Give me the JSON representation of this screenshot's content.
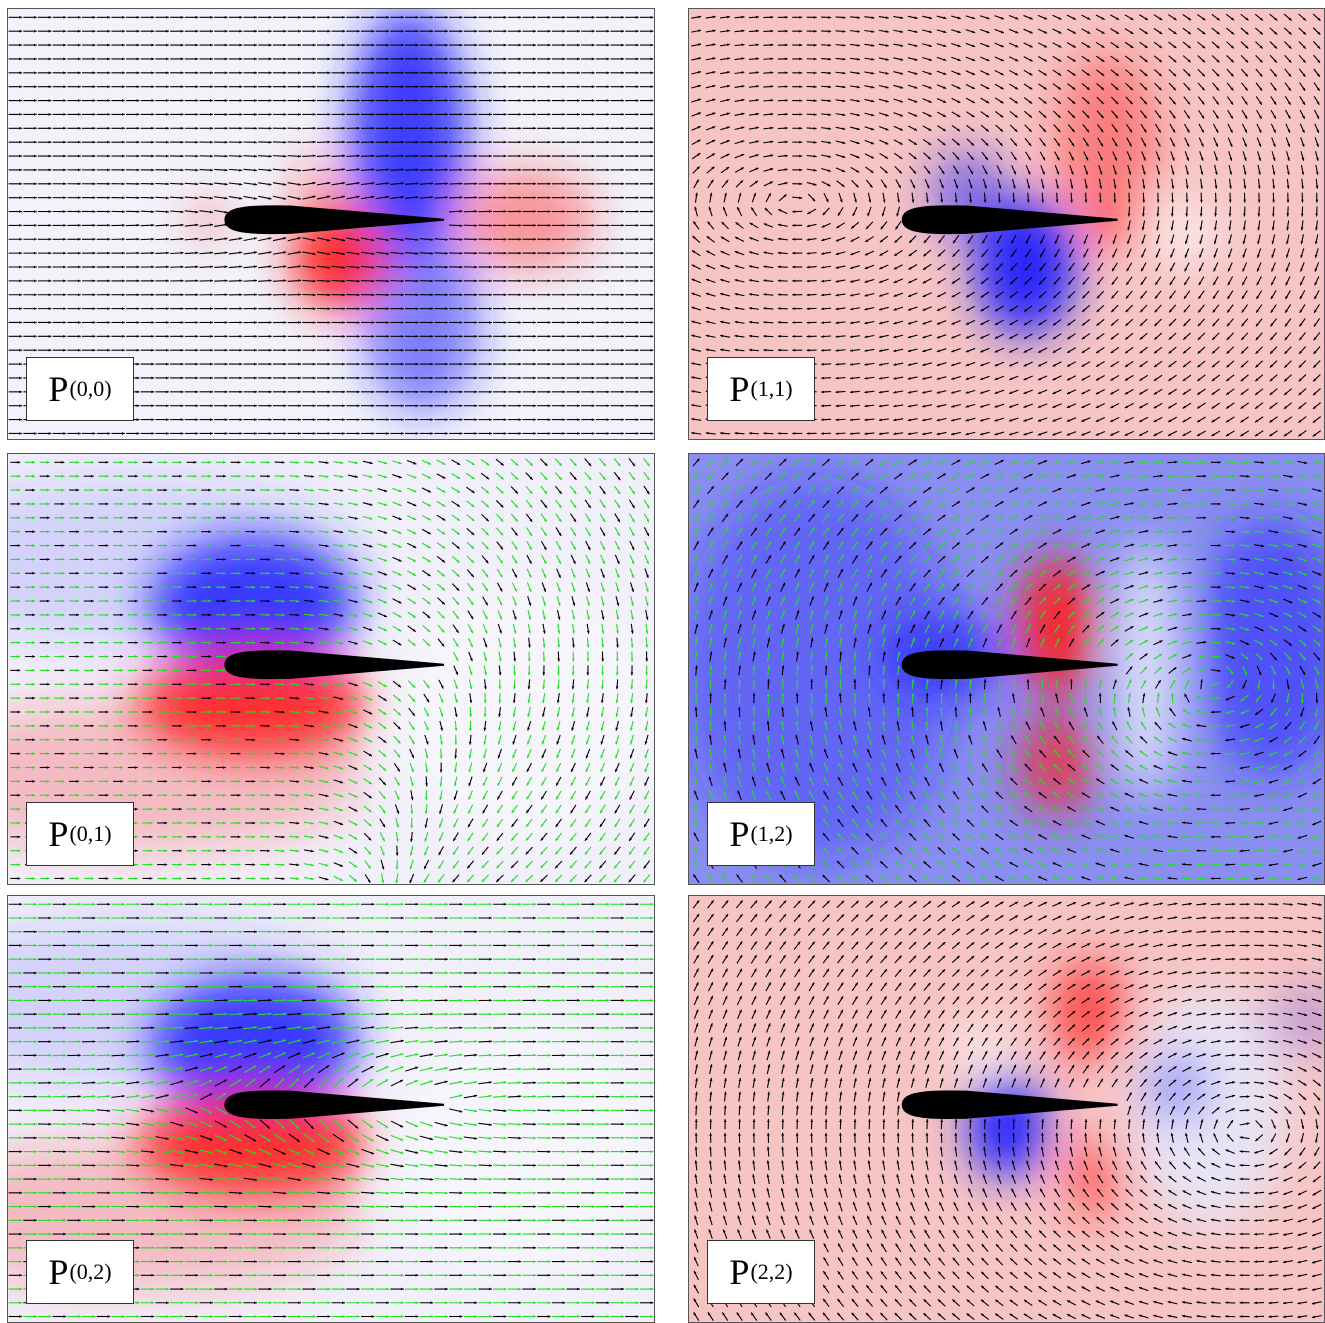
{
  "panels": [
    {
      "id": "p00",
      "label": "P",
      "superscript": "(0,0)",
      "field": "uniform",
      "background": "pressure-lift",
      "arrow_colors": [
        "#000000"
      ]
    },
    {
      "id": "p11",
      "label": "P",
      "superscript": "(1,1)",
      "field": "vortex",
      "background": "pink-dipole",
      "arrow_colors": [
        "#000000"
      ]
    },
    {
      "id": "p01",
      "label": "P",
      "superscript": "(0,1)",
      "field": "blend-vortex",
      "background": "upper-blue-lower-red",
      "arrow_colors": [
        "#000000",
        "#22dd22"
      ]
    },
    {
      "id": "p12",
      "label": "P",
      "superscript": "(1,2)",
      "field": "vortex-blend",
      "background": "blue-field",
      "arrow_colors": [
        "#000000",
        "#22dd22"
      ]
    },
    {
      "id": "p02",
      "label": "P",
      "superscript": "(0,2)",
      "field": "uniform-wake",
      "background": "upper-blue-lower-red",
      "arrow_colors": [
        "#000000",
        "#22dd22"
      ]
    },
    {
      "id": "p22",
      "label": "P",
      "superscript": "(2,2)",
      "field": "vortex-wake",
      "background": "pink-quadrupole",
      "arrow_colors": [
        "#000000"
      ]
    }
  ],
  "colors": {
    "positive": "#ff2020",
    "negative": "#2020ff",
    "airfoil": "#000000",
    "secondary_arrow": "#22dd22"
  }
}
